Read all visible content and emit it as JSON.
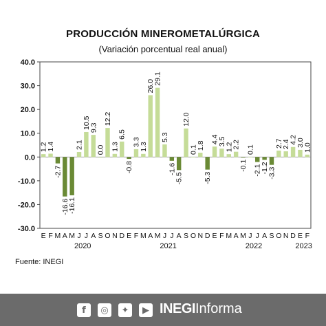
{
  "header": {
    "title": "PRODUCCIÓN MINEROMETALÚRGICA",
    "subtitle": "(Variación porcentual real anual)"
  },
  "source": "Fuente: INEGI",
  "footer": {
    "icons": [
      "facebook-icon",
      "instagram-icon",
      "twitter-icon",
      "youtube-icon"
    ],
    "brand_bold": "INEGI",
    "brand_regular": "Informa",
    "background": "#6b6b6b"
  },
  "chart_data": {
    "type": "bar",
    "title": "PRODUCCIÓN MINEROMETALÚRGICA",
    "subtitle": "(Variación porcentual real anual)",
    "ylim": [
      -30,
      40
    ],
    "yticks": [
      "40.0",
      "30.0",
      "20.0",
      "10.0",
      "0.0",
      "-10.0",
      "-20.0",
      "-30.0"
    ],
    "ytick_values": [
      40,
      30,
      20,
      10,
      0,
      -10,
      -20,
      -30
    ],
    "grid": false,
    "colors": {
      "positive": "#c5dc98",
      "negative": "#6a8a35",
      "border": "#444444"
    },
    "month_labels": [
      "E",
      "F",
      "M",
      "A",
      "M",
      "J",
      "J",
      "A",
      "S",
      "O",
      "N",
      "D",
      "E",
      "F",
      "M",
      "A",
      "M",
      "J",
      "J",
      "A",
      "S",
      "O",
      "N",
      "D",
      "E",
      "F",
      "M",
      "A",
      "M",
      "J",
      "J",
      "A",
      "S",
      "O",
      "N",
      "D",
      "E",
      "F"
    ],
    "years": [
      {
        "label": "2020",
        "first_index": 0,
        "count": 12
      },
      {
        "label": "2021",
        "first_index": 12,
        "count": 12
      },
      {
        "label": "2022",
        "first_index": 24,
        "count": 12
      },
      {
        "label": "2023",
        "first_index": 36,
        "count": 2
      }
    ],
    "values": [
      1.2,
      1.4,
      -2.7,
      -16.6,
      -16.1,
      2.1,
      10.5,
      9.3,
      0.0,
      12.2,
      1.3,
      6.5,
      -0.8,
      3.3,
      1.3,
      26.0,
      29.1,
      5.3,
      -1.6,
      -5.5,
      12.0,
      0.1,
      1.8,
      -5.3,
      4.4,
      3.5,
      1.2,
      2.2,
      -0.1,
      0.1,
      -2.1,
      -1.2,
      -3.3,
      2.7,
      2.4,
      4.2,
      3.0,
      1.0
    ],
    "labels": [
      "1.2",
      "1.4",
      "-2.7",
      "-16.6",
      "-16.1",
      "2.1",
      "10.5",
      "9.3",
      "0.0",
      "12.2",
      "1.3",
      "6.5",
      "-0.8",
      "3.3",
      "1.3",
      "26.0",
      "29.1",
      "5.3",
      "-1.6",
      "-5.5",
      "12.0",
      "0.1",
      "1.8",
      "-5.3",
      "4.4",
      "3.5",
      "1.2",
      "2.2",
      "-0.1",
      "0.1",
      "-2.1",
      "-1.2",
      "-3.3",
      "2.7",
      "2.4",
      "4.2",
      "3.0",
      "1.0"
    ]
  }
}
